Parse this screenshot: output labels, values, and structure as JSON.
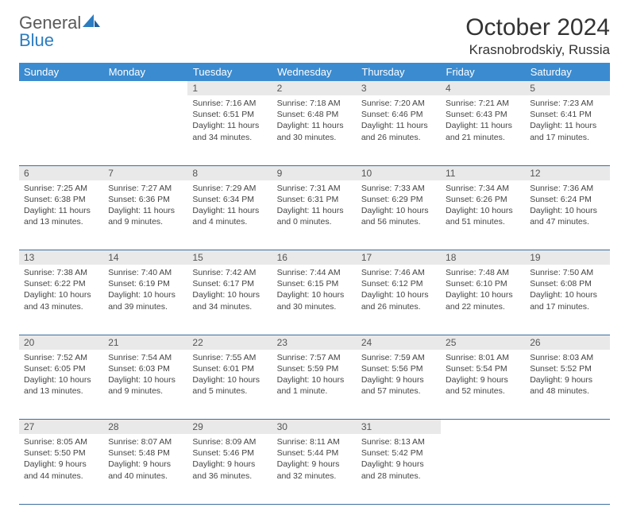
{
  "brand": {
    "part1": "General",
    "part2": "Blue"
  },
  "title": "October 2024",
  "location": "Krasnobrodskiy, Russia",
  "colors": {
    "header_bg": "#3b8bd0",
    "header_text": "#ffffff",
    "daynum_bg": "#e9e9e9",
    "border": "#3b6fa0",
    "logo_gray": "#5a5a5a",
    "logo_blue": "#2b7cc0"
  },
  "weekdays": [
    "Sunday",
    "Monday",
    "Tuesday",
    "Wednesday",
    "Thursday",
    "Friday",
    "Saturday"
  ],
  "weeks": [
    {
      "nums": [
        "",
        "",
        "1",
        "2",
        "3",
        "4",
        "5"
      ],
      "cells": [
        null,
        null,
        {
          "sunrise": "Sunrise: 7:16 AM",
          "sunset": "Sunset: 6:51 PM",
          "day1": "Daylight: 11 hours",
          "day2": "and 34 minutes."
        },
        {
          "sunrise": "Sunrise: 7:18 AM",
          "sunset": "Sunset: 6:48 PM",
          "day1": "Daylight: 11 hours",
          "day2": "and 30 minutes."
        },
        {
          "sunrise": "Sunrise: 7:20 AM",
          "sunset": "Sunset: 6:46 PM",
          "day1": "Daylight: 11 hours",
          "day2": "and 26 minutes."
        },
        {
          "sunrise": "Sunrise: 7:21 AM",
          "sunset": "Sunset: 6:43 PM",
          "day1": "Daylight: 11 hours",
          "day2": "and 21 minutes."
        },
        {
          "sunrise": "Sunrise: 7:23 AM",
          "sunset": "Sunset: 6:41 PM",
          "day1": "Daylight: 11 hours",
          "day2": "and 17 minutes."
        }
      ]
    },
    {
      "nums": [
        "6",
        "7",
        "8",
        "9",
        "10",
        "11",
        "12"
      ],
      "cells": [
        {
          "sunrise": "Sunrise: 7:25 AM",
          "sunset": "Sunset: 6:38 PM",
          "day1": "Daylight: 11 hours",
          "day2": "and 13 minutes."
        },
        {
          "sunrise": "Sunrise: 7:27 AM",
          "sunset": "Sunset: 6:36 PM",
          "day1": "Daylight: 11 hours",
          "day2": "and 9 minutes."
        },
        {
          "sunrise": "Sunrise: 7:29 AM",
          "sunset": "Sunset: 6:34 PM",
          "day1": "Daylight: 11 hours",
          "day2": "and 4 minutes."
        },
        {
          "sunrise": "Sunrise: 7:31 AM",
          "sunset": "Sunset: 6:31 PM",
          "day1": "Daylight: 11 hours",
          "day2": "and 0 minutes."
        },
        {
          "sunrise": "Sunrise: 7:33 AM",
          "sunset": "Sunset: 6:29 PM",
          "day1": "Daylight: 10 hours",
          "day2": "and 56 minutes."
        },
        {
          "sunrise": "Sunrise: 7:34 AM",
          "sunset": "Sunset: 6:26 PM",
          "day1": "Daylight: 10 hours",
          "day2": "and 51 minutes."
        },
        {
          "sunrise": "Sunrise: 7:36 AM",
          "sunset": "Sunset: 6:24 PM",
          "day1": "Daylight: 10 hours",
          "day2": "and 47 minutes."
        }
      ]
    },
    {
      "nums": [
        "13",
        "14",
        "15",
        "16",
        "17",
        "18",
        "19"
      ],
      "cells": [
        {
          "sunrise": "Sunrise: 7:38 AM",
          "sunset": "Sunset: 6:22 PM",
          "day1": "Daylight: 10 hours",
          "day2": "and 43 minutes."
        },
        {
          "sunrise": "Sunrise: 7:40 AM",
          "sunset": "Sunset: 6:19 PM",
          "day1": "Daylight: 10 hours",
          "day2": "and 39 minutes."
        },
        {
          "sunrise": "Sunrise: 7:42 AM",
          "sunset": "Sunset: 6:17 PM",
          "day1": "Daylight: 10 hours",
          "day2": "and 34 minutes."
        },
        {
          "sunrise": "Sunrise: 7:44 AM",
          "sunset": "Sunset: 6:15 PM",
          "day1": "Daylight: 10 hours",
          "day2": "and 30 minutes."
        },
        {
          "sunrise": "Sunrise: 7:46 AM",
          "sunset": "Sunset: 6:12 PM",
          "day1": "Daylight: 10 hours",
          "day2": "and 26 minutes."
        },
        {
          "sunrise": "Sunrise: 7:48 AM",
          "sunset": "Sunset: 6:10 PM",
          "day1": "Daylight: 10 hours",
          "day2": "and 22 minutes."
        },
        {
          "sunrise": "Sunrise: 7:50 AM",
          "sunset": "Sunset: 6:08 PM",
          "day1": "Daylight: 10 hours",
          "day2": "and 17 minutes."
        }
      ]
    },
    {
      "nums": [
        "20",
        "21",
        "22",
        "23",
        "24",
        "25",
        "26"
      ],
      "cells": [
        {
          "sunrise": "Sunrise: 7:52 AM",
          "sunset": "Sunset: 6:05 PM",
          "day1": "Daylight: 10 hours",
          "day2": "and 13 minutes."
        },
        {
          "sunrise": "Sunrise: 7:54 AM",
          "sunset": "Sunset: 6:03 PM",
          "day1": "Daylight: 10 hours",
          "day2": "and 9 minutes."
        },
        {
          "sunrise": "Sunrise: 7:55 AM",
          "sunset": "Sunset: 6:01 PM",
          "day1": "Daylight: 10 hours",
          "day2": "and 5 minutes."
        },
        {
          "sunrise": "Sunrise: 7:57 AM",
          "sunset": "Sunset: 5:59 PM",
          "day1": "Daylight: 10 hours",
          "day2": "and 1 minute."
        },
        {
          "sunrise": "Sunrise: 7:59 AM",
          "sunset": "Sunset: 5:56 PM",
          "day1": "Daylight: 9 hours",
          "day2": "and 57 minutes."
        },
        {
          "sunrise": "Sunrise: 8:01 AM",
          "sunset": "Sunset: 5:54 PM",
          "day1": "Daylight: 9 hours",
          "day2": "and 52 minutes."
        },
        {
          "sunrise": "Sunrise: 8:03 AM",
          "sunset": "Sunset: 5:52 PM",
          "day1": "Daylight: 9 hours",
          "day2": "and 48 minutes."
        }
      ]
    },
    {
      "nums": [
        "27",
        "28",
        "29",
        "30",
        "31",
        "",
        ""
      ],
      "cells": [
        {
          "sunrise": "Sunrise: 8:05 AM",
          "sunset": "Sunset: 5:50 PM",
          "day1": "Daylight: 9 hours",
          "day2": "and 44 minutes."
        },
        {
          "sunrise": "Sunrise: 8:07 AM",
          "sunset": "Sunset: 5:48 PM",
          "day1": "Daylight: 9 hours",
          "day2": "and 40 minutes."
        },
        {
          "sunrise": "Sunrise: 8:09 AM",
          "sunset": "Sunset: 5:46 PM",
          "day1": "Daylight: 9 hours",
          "day2": "and 36 minutes."
        },
        {
          "sunrise": "Sunrise: 8:11 AM",
          "sunset": "Sunset: 5:44 PM",
          "day1": "Daylight: 9 hours",
          "day2": "and 32 minutes."
        },
        {
          "sunrise": "Sunrise: 8:13 AM",
          "sunset": "Sunset: 5:42 PM",
          "day1": "Daylight: 9 hours",
          "day2": "and 28 minutes."
        },
        null,
        null
      ]
    }
  ]
}
